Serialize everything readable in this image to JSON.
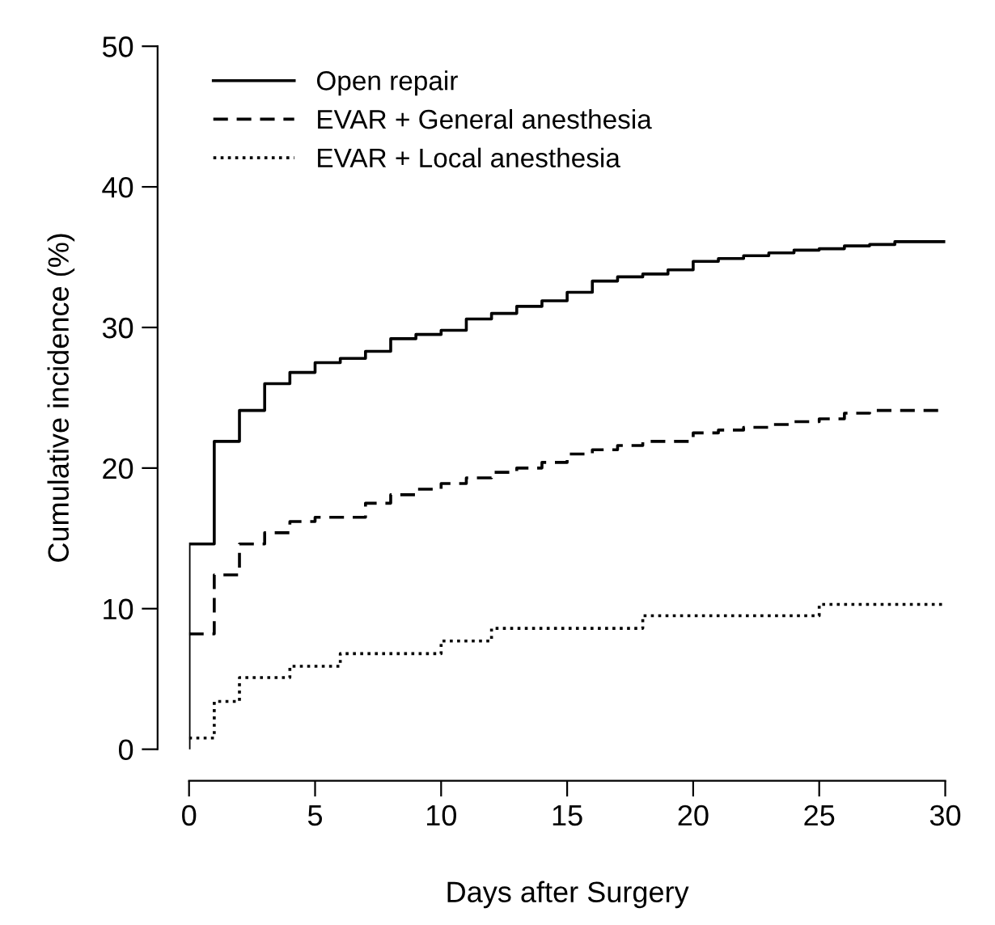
{
  "chart_data": {
    "type": "step",
    "xlabel": "Days after Surgery",
    "ylabel": "Cumulative incidence (%)",
    "xlim": [
      0,
      30
    ],
    "ylim": [
      0,
      50
    ],
    "xticks": [
      0,
      5,
      10,
      15,
      20,
      25,
      30
    ],
    "yticks": [
      0,
      10,
      20,
      30,
      40,
      50
    ],
    "grid": false,
    "legend": "top left",
    "marker": "none",
    "series": [
      {
        "name": "Open repair",
        "color": "#000000",
        "line_style": "solid",
        "x": [
          0,
          0,
          1,
          2,
          3,
          4,
          5,
          6,
          7,
          8,
          9,
          10,
          11,
          12,
          13,
          14,
          15,
          16,
          17,
          18,
          19,
          20,
          21,
          22,
          23,
          24,
          25,
          26,
          27,
          28,
          30
        ],
        "values": [
          0,
          14.6,
          21.9,
          24.1,
          26.0,
          26.8,
          27.5,
          27.8,
          28.3,
          29.2,
          29.5,
          29.8,
          30.6,
          31.0,
          31.5,
          31.9,
          32.5,
          33.3,
          33.6,
          33.8,
          34.1,
          34.7,
          34.9,
          35.1,
          35.3,
          35.5,
          35.6,
          35.8,
          35.9,
          36.1,
          36.1
        ]
      },
      {
        "name": "EVAR + General anesthesia",
        "color": "#000000",
        "line_style": "dashed",
        "x": [
          0,
          1,
          2,
          3,
          4,
          5,
          7,
          8,
          9,
          10,
          11,
          12,
          13,
          14,
          15,
          16,
          17,
          18,
          20,
          21,
          22,
          23,
          24,
          25,
          26,
          27,
          30
        ],
        "values": [
          8.2,
          12.4,
          14.6,
          15.4,
          16.2,
          16.5,
          17.5,
          18.1,
          18.5,
          18.9,
          19.3,
          19.7,
          20.0,
          20.4,
          21.0,
          21.3,
          21.6,
          21.9,
          22.5,
          22.7,
          22.9,
          23.1,
          23.3,
          23.5,
          23.9,
          24.1,
          24.1
        ]
      },
      {
        "name": "EVAR + Local anesthesia",
        "color": "#000000",
        "line_style": "dotted",
        "x": [
          0,
          1,
          2,
          4,
          6,
          10,
          12,
          18,
          25,
          30
        ],
        "values": [
          0.8,
          3.4,
          5.1,
          5.9,
          6.8,
          7.7,
          8.6,
          9.5,
          10.3,
          10.3
        ]
      }
    ]
  }
}
